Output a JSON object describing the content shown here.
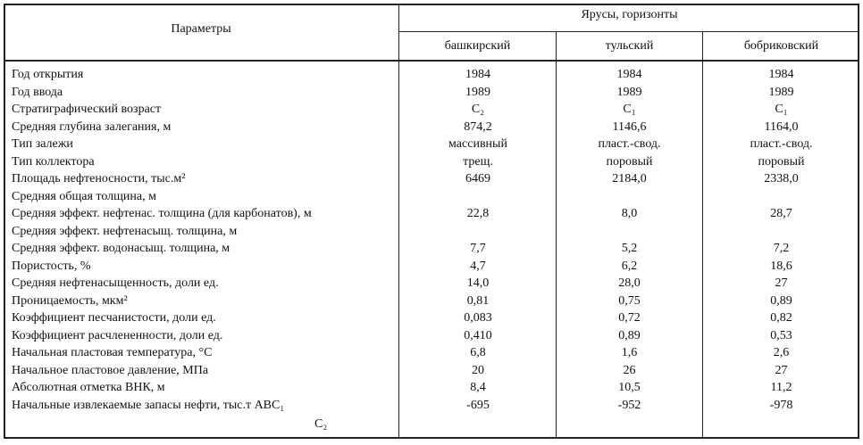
{
  "header": {
    "parameters": "Параметры",
    "group": "Ярусы, горизонты",
    "columns": [
      "башкирский",
      "тульский",
      "бобриковский"
    ]
  },
  "rows": [
    {
      "param": "Год открытия",
      "values": [
        "1984",
        "1984",
        "1984"
      ]
    },
    {
      "param": "Год ввода",
      "values": [
        "1989",
        "1989",
        "1989"
      ]
    },
    {
      "param": "Стратиграфический возраст",
      "values": [
        "C₂",
        "C₁",
        "C₁"
      ]
    },
    {
      "param": "Средняя глубина залегания, м",
      "values": [
        "874,2",
        "1146,6",
        "1164,0"
      ]
    },
    {
      "param": "Тип залежи",
      "values": [
        "массивный",
        "пласт.-свод.",
        "пласт.-свод."
      ]
    },
    {
      "param": "Тип коллектора",
      "values": [
        "трещ.",
        "поровый",
        "поровый"
      ]
    },
    {
      "param": "Площадь нефтеносности, тыс.м²",
      "values": [
        "6469",
        "2184,0",
        "2338,0"
      ]
    },
    {
      "param": "Средняя общая толщина, м",
      "values": [
        "",
        "",
        ""
      ]
    },
    {
      "param": "Средняя эффект. нефтенас. толщина (для карбонатов), м",
      "values": [
        "22,8",
        "8,0",
        "28,7"
      ]
    },
    {
      "param": "Средняя эффект. нефтенасыщ. толщина, м",
      "values": [
        "",
        "",
        ""
      ]
    },
    {
      "param": "Средняя эффект. водонасыщ. толщина, м",
      "values": [
        "7,7",
        "5,2",
        "7,2"
      ]
    },
    {
      "param": "Пористость, %",
      "values": [
        "4,7",
        "6,2",
        "18,6"
      ]
    },
    {
      "param": "Средняя нефтенасыщенность, доли ед.",
      "values": [
        "14,0",
        "28,0",
        "27"
      ]
    },
    {
      "param": "Проницаемость, мкм²",
      "values": [
        "0,81",
        "0,75",
        "0,89"
      ]
    },
    {
      "param": "Коэффициент песчанистости, доли ед.",
      "values": [
        "0,083",
        "0,72",
        "0,82"
      ]
    },
    {
      "param": "Коэффициент расчлененности, доли ед.",
      "values": [
        "0,410",
        "0,89",
        "0,53"
      ]
    },
    {
      "param": "Начальная пластовая температура, °С",
      "values": [
        "6,8",
        "1,6",
        "2,6"
      ]
    },
    {
      "param": "Начальное пластовое давление, МПа",
      "values": [
        "20",
        "26",
        "27"
      ]
    },
    {
      "param": "Абсолютная отметка ВНК, м",
      "values": [
        "8,4",
        "10,5",
        "11,2"
      ]
    },
    {
      "param": "Начальные извлекаемые запасы нефти, тыс.т  АВС₁",
      "values": [
        "-695",
        "-952",
        "-978"
      ]
    }
  ],
  "last_row_sub": "C₂"
}
